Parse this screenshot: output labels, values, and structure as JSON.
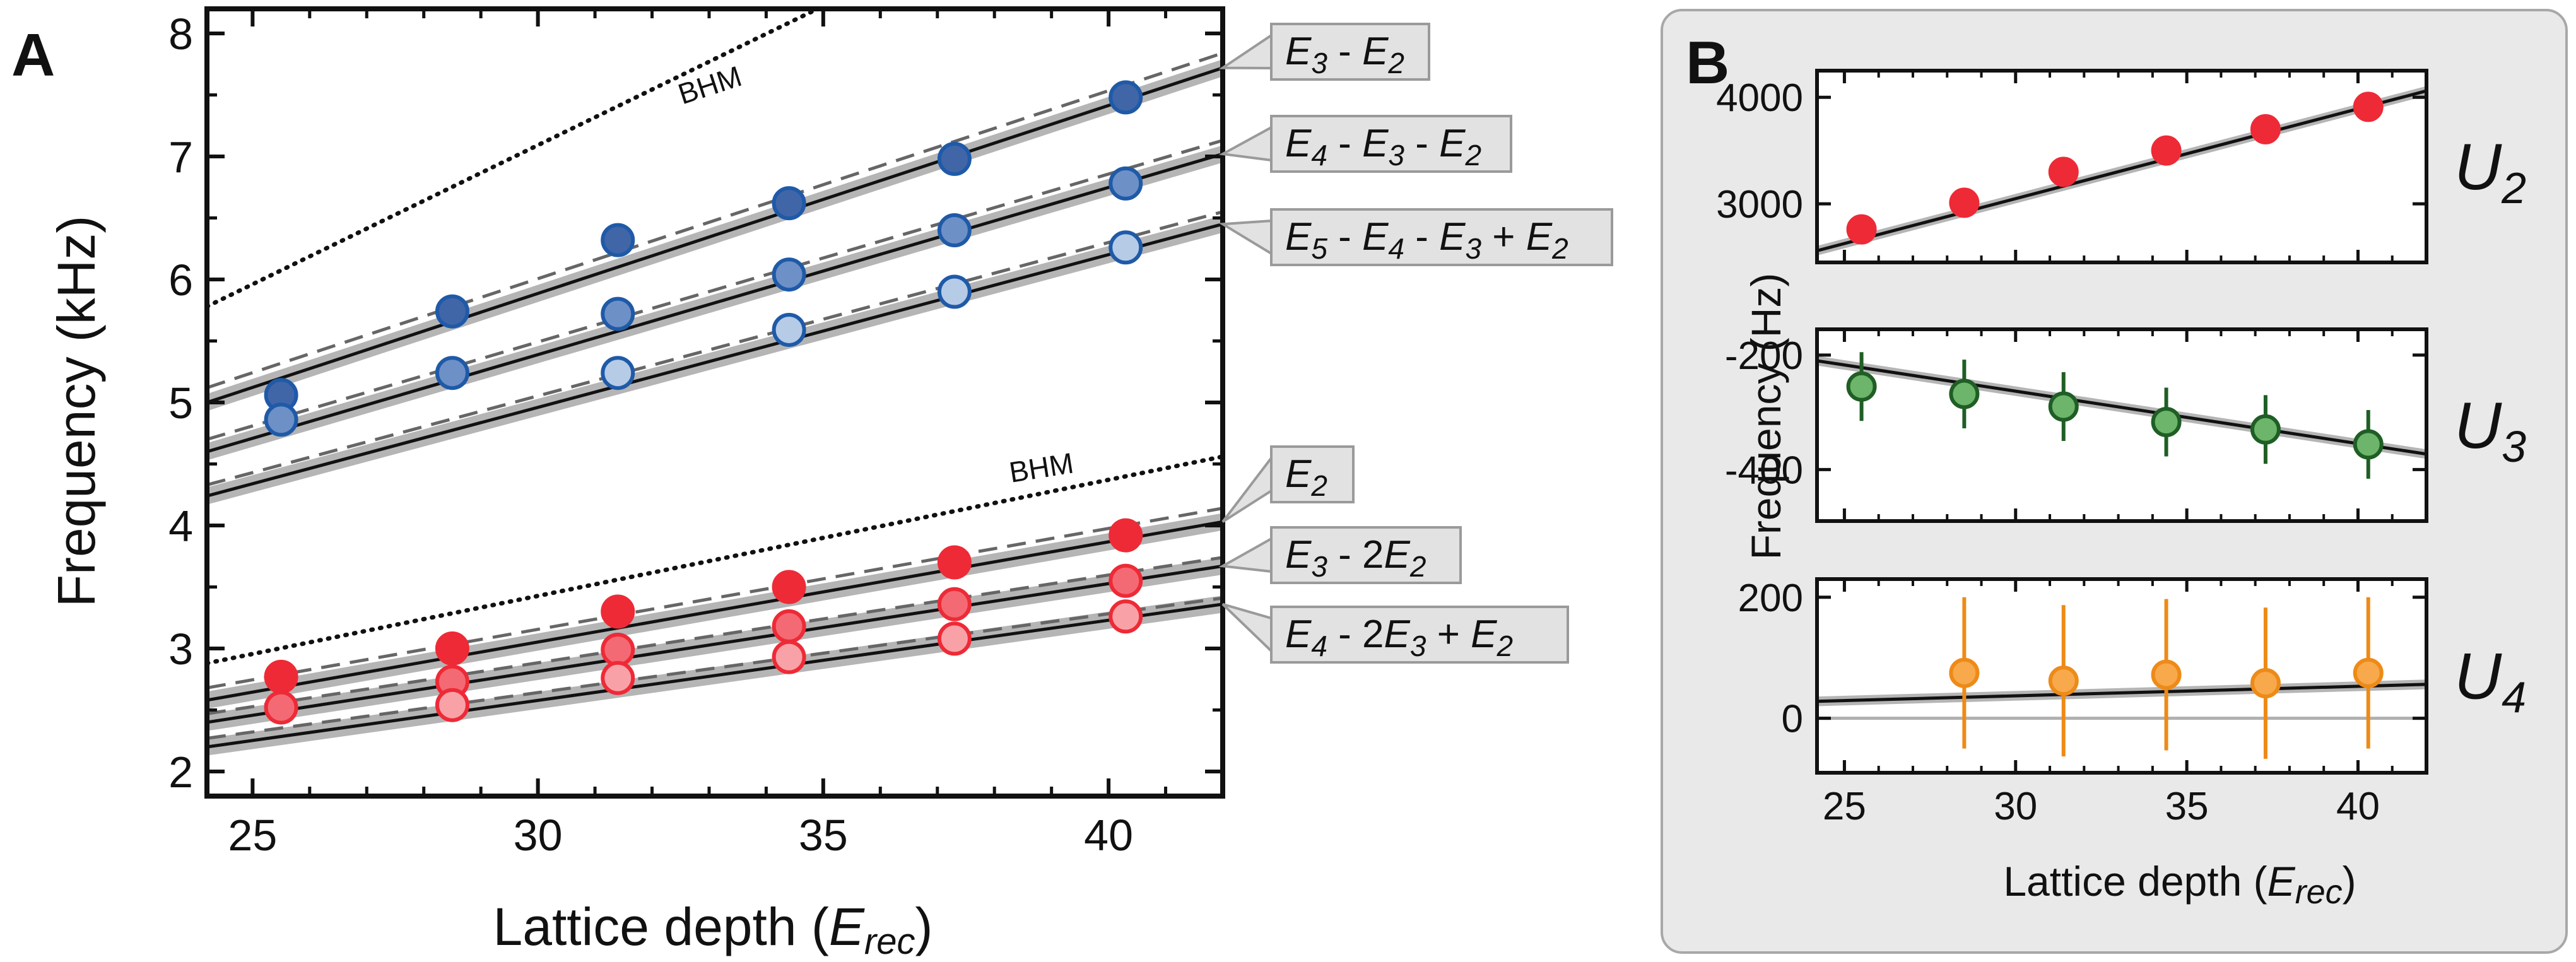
{
  "colors": {
    "red": "#ee2a36",
    "red_light": "#f46a74",
    "red_lighter": "#f8a2a8",
    "blue_dark": "#4166a8",
    "blue_mid": "#6d90c6",
    "blue_light": "#b6cbe6",
    "blue_edge": "#1f5aa8",
    "green": "#6cb56b",
    "green_edge": "#1f5e24",
    "orange": "#f7a94c",
    "orange_edge": "#ee8a17",
    "band": "#b5b5b5",
    "dashed": "#666666",
    "panel_bg": "#e9e9e9"
  },
  "chart_data": [
    {
      "panel": "A",
      "type": "line",
      "panel_label": "A",
      "xlabel": "Lattice depth (",
      "xlabel_sym": "E",
      "xlabel_sub": "rec",
      "xlabel_end": ")",
      "ylabel": "Frequency (kHz)",
      "xlim": [
        24.2,
        42.0
      ],
      "ylim": [
        1.8,
        8.2
      ],
      "xticks": [
        25,
        30,
        35,
        40
      ],
      "yticks": [
        2,
        3,
        4,
        5,
        6,
        7,
        8
      ],
      "bhm_label": "BHM",
      "bhm_lines": [
        {
          "x": [
            24.2,
            34.9
          ],
          "y": [
            5.78,
            8.2
          ]
        },
        {
          "x": [
            24.2,
            42.0
          ],
          "y": [
            2.88,
            4.56
          ]
        }
      ],
      "series": [
        {
          "name": "E3 - E2",
          "label_parts": [
            "E",
            "3",
            " - ",
            "E",
            "2"
          ],
          "color_key": "blue_dark",
          "edge_key": "blue_edge",
          "x": [
            25.5,
            28.5,
            31.4,
            34.4,
            37.3,
            40.3
          ],
          "y": [
            5.06,
            5.74,
            6.32,
            6.62,
            6.98,
            7.48
          ],
          "fit": [
            5.0,
            7.72
          ],
          "dashed": [
            5.12,
            7.84
          ]
        },
        {
          "name": "E4 - E3 - E2",
          "label_parts": [
            "E",
            "4",
            " - ",
            "E",
            "3",
            " - ",
            "E",
            "2"
          ],
          "color_key": "blue_mid",
          "edge_key": "blue_edge",
          "x": [
            25.5,
            28.5,
            31.4,
            34.4,
            37.3,
            40.3
          ],
          "y": [
            4.86,
            5.24,
            5.72,
            6.04,
            6.4,
            6.78
          ],
          "fit": [
            4.6,
            7.02
          ],
          "dashed": [
            4.7,
            7.13
          ]
        },
        {
          "name": "E5 - E4 - E3 + E2",
          "label_parts": [
            "E",
            "5",
            " - ",
            "E",
            "4",
            " - ",
            "E",
            "3",
            " + ",
            "E",
            "2"
          ],
          "color_key": "blue_light",
          "edge_key": "blue_edge",
          "x": [
            31.4,
            34.4,
            37.3,
            40.3
          ],
          "y": [
            5.24,
            5.59,
            5.9,
            6.26
          ],
          "fit": [
            4.24,
            6.45
          ],
          "dashed": [
            4.33,
            6.55
          ]
        },
        {
          "name": "E2",
          "label_parts": [
            "E",
            "2"
          ],
          "color_key": "red",
          "edge_key": "red",
          "x": [
            25.5,
            28.5,
            31.4,
            34.4,
            37.3,
            40.3
          ],
          "y": [
            2.77,
            3.0,
            3.3,
            3.5,
            3.7,
            3.92
          ],
          "fit": [
            2.58,
            4.03
          ],
          "dashed": [
            2.68,
            4.14
          ]
        },
        {
          "name": "E3 - 2E2",
          "label_parts": [
            "E",
            "3",
            " - 2",
            "E",
            "2"
          ],
          "color_key": "red_light",
          "edge_key": "red",
          "x": [
            25.5,
            28.5,
            31.4,
            34.4,
            37.3,
            40.3
          ],
          "y": [
            2.52,
            2.73,
            2.99,
            3.18,
            3.36,
            3.55
          ],
          "fit": [
            2.4,
            3.67
          ],
          "dashed": [
            2.47,
            3.74
          ]
        },
        {
          "name": "E4 - 2E3 + E2",
          "label_parts": [
            "E",
            "4",
            " - 2",
            "E",
            "3",
            " + ",
            "E",
            "2"
          ],
          "color_key": "red_lighter",
          "edge_key": "red",
          "x": [
            28.5,
            31.4,
            34.4,
            37.3,
            40.3
          ],
          "y": [
            2.54,
            2.76,
            2.93,
            3.08,
            3.26
          ],
          "fit": [
            2.2,
            3.36
          ],
          "dashed": [
            2.27,
            3.41
          ]
        }
      ]
    },
    {
      "panel": "B",
      "type": "line",
      "panel_label": "B",
      "xlabel": "Lattice depth (",
      "xlabel_sym": "E",
      "xlabel_sub": "rec",
      "xlabel_end": ")",
      "ylabel": "Frequency (Hz)",
      "xlim": [
        24.2,
        42.0
      ],
      "xticks": [
        25,
        30,
        35,
        40
      ],
      "subplots": [
        {
          "name": "U2",
          "label_sym": "U",
          "label_sub": "2",
          "color_key": "red",
          "edge_key": "red",
          "ylim": [
            2450,
            4250
          ],
          "yticks": [
            3000,
            4000
          ],
          "x": [
            25.5,
            28.5,
            31.4,
            34.4,
            37.3,
            40.3
          ],
          "y": [
            2760,
            3010,
            3300,
            3500,
            3700,
            3910
          ],
          "err": [
            0,
            0,
            0,
            0,
            0,
            0
          ],
          "fit": [
            2560,
            4060
          ],
          "zero_line": false
        },
        {
          "name": "U3",
          "label_sym": "U",
          "label_sub": "3",
          "color_key": "green",
          "edge_key": "green_edge",
          "ylim": [
            -490,
            -155
          ],
          "yticks": [
            -200,
            -400
          ],
          "x": [
            25.5,
            28.5,
            31.4,
            34.4,
            37.3,
            40.3
          ],
          "y": [
            -255,
            -268,
            -290,
            -317,
            -330,
            -356
          ],
          "err": [
            60,
            60,
            60,
            60,
            60,
            60
          ],
          "fit": [
            -210,
            -373
          ],
          "zero_line": false
        },
        {
          "name": "U4",
          "label_sym": "U",
          "label_sub": "4",
          "color_key": "orange",
          "edge_key": "orange_edge",
          "ylim": [
            -90,
            230
          ],
          "yticks": [
            0,
            200
          ],
          "x": [
            28.5,
            31.4,
            34.4,
            37.3,
            40.3
          ],
          "y": [
            75,
            62,
            72,
            58,
            75
          ],
          "err": [
            125,
            125,
            125,
            125,
            125
          ],
          "fit": [
            28,
            56
          ],
          "zero_line": true
        }
      ]
    }
  ]
}
